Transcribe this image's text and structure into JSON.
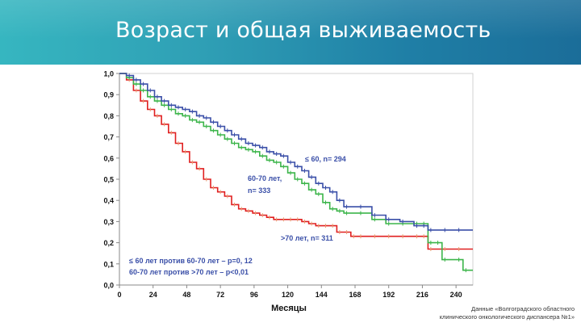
{
  "header": {
    "title": "Возраст и общая выживаемость"
  },
  "footnote": {
    "line1": "Данные «Волгоградского областного",
    "line2": "клинического онкологического диспансера №1»"
  },
  "colors": {
    "banner": "#2a93b2",
    "series_le60": "#3a4fa8",
    "series_60_70": "#3cb54a",
    "series_gt70": "#e02020"
  },
  "chart_data": {
    "type": "line",
    "xlabel": "Месяцы",
    "ylabel": "",
    "xlim": [
      0,
      252
    ],
    "ylim": [
      0,
      1.0
    ],
    "x_ticks": [
      "0",
      "24",
      "48",
      "72",
      "96",
      "120",
      "144",
      "168",
      "192",
      "216",
      "240"
    ],
    "y_ticks": [
      "0,0",
      "0,1",
      "0,2",
      "0,3",
      "0,4",
      "0,5",
      "0,6",
      "0,7",
      "0,8",
      "0,9",
      "1,0"
    ],
    "grid": false,
    "series": [
      {
        "name": "≤ 60, n= 294",
        "color": "#3a4fa8",
        "x": [
          0,
          5,
          10,
          15,
          20,
          25,
          30,
          35,
          40,
          45,
          50,
          55,
          60,
          65,
          70,
          75,
          80,
          85,
          90,
          95,
          100,
          105,
          110,
          115,
          120,
          125,
          130,
          135,
          140,
          145,
          150,
          155,
          160,
          170,
          180,
          190,
          200,
          210,
          215,
          220,
          230,
          240,
          252
        ],
        "y": [
          1.0,
          0.99,
          0.97,
          0.95,
          0.92,
          0.89,
          0.87,
          0.85,
          0.84,
          0.83,
          0.82,
          0.8,
          0.79,
          0.77,
          0.75,
          0.73,
          0.71,
          0.69,
          0.67,
          0.66,
          0.65,
          0.63,
          0.62,
          0.61,
          0.58,
          0.56,
          0.54,
          0.51,
          0.48,
          0.46,
          0.44,
          0.4,
          0.37,
          0.37,
          0.33,
          0.31,
          0.3,
          0.28,
          0.28,
          0.26,
          0.26,
          0.26,
          0.26
        ]
      },
      {
        "name": "60-70 лет, n= 333",
        "color": "#3cb54a",
        "x": [
          0,
          5,
          10,
          15,
          20,
          25,
          30,
          35,
          40,
          45,
          50,
          55,
          60,
          65,
          70,
          75,
          80,
          85,
          90,
          95,
          100,
          105,
          110,
          115,
          120,
          125,
          130,
          135,
          140,
          145,
          150,
          155,
          160,
          170,
          180,
          190,
          200,
          210,
          215,
          220,
          225,
          230,
          240,
          245,
          252
        ],
        "y": [
          1.0,
          0.98,
          0.95,
          0.92,
          0.89,
          0.87,
          0.85,
          0.83,
          0.81,
          0.8,
          0.78,
          0.77,
          0.75,
          0.73,
          0.71,
          0.69,
          0.67,
          0.65,
          0.64,
          0.63,
          0.61,
          0.59,
          0.58,
          0.56,
          0.53,
          0.5,
          0.48,
          0.45,
          0.43,
          0.39,
          0.36,
          0.35,
          0.34,
          0.34,
          0.31,
          0.29,
          0.29,
          0.29,
          0.29,
          0.2,
          0.2,
          0.12,
          0.12,
          0.07,
          0.07
        ]
      },
      {
        "name": ">70 лет, n= 311",
        "color": "#e02020",
        "x": [
          0,
          5,
          10,
          15,
          20,
          25,
          30,
          35,
          40,
          45,
          50,
          55,
          60,
          65,
          70,
          75,
          80,
          85,
          90,
          95,
          100,
          105,
          110,
          115,
          120,
          125,
          130,
          135,
          140,
          145,
          150,
          155,
          160,
          165,
          170,
          180,
          190,
          200,
          210,
          215,
          220,
          230,
          240,
          252
        ],
        "y": [
          1.0,
          0.97,
          0.92,
          0.87,
          0.83,
          0.8,
          0.76,
          0.72,
          0.67,
          0.63,
          0.58,
          0.55,
          0.5,
          0.46,
          0.44,
          0.42,
          0.38,
          0.36,
          0.35,
          0.34,
          0.33,
          0.32,
          0.31,
          0.31,
          0.31,
          0.31,
          0.3,
          0.29,
          0.28,
          0.28,
          0.28,
          0.25,
          0.25,
          0.23,
          0.23,
          0.23,
          0.23,
          0.23,
          0.23,
          0.23,
          0.17,
          0.17,
          0.17,
          0.17
        ]
      }
    ],
    "annotations": [
      "≤ 60 лет против 60-70 лет – p=0, 12",
      "60-70 лет против >70 лет – p<0,01"
    ]
  }
}
